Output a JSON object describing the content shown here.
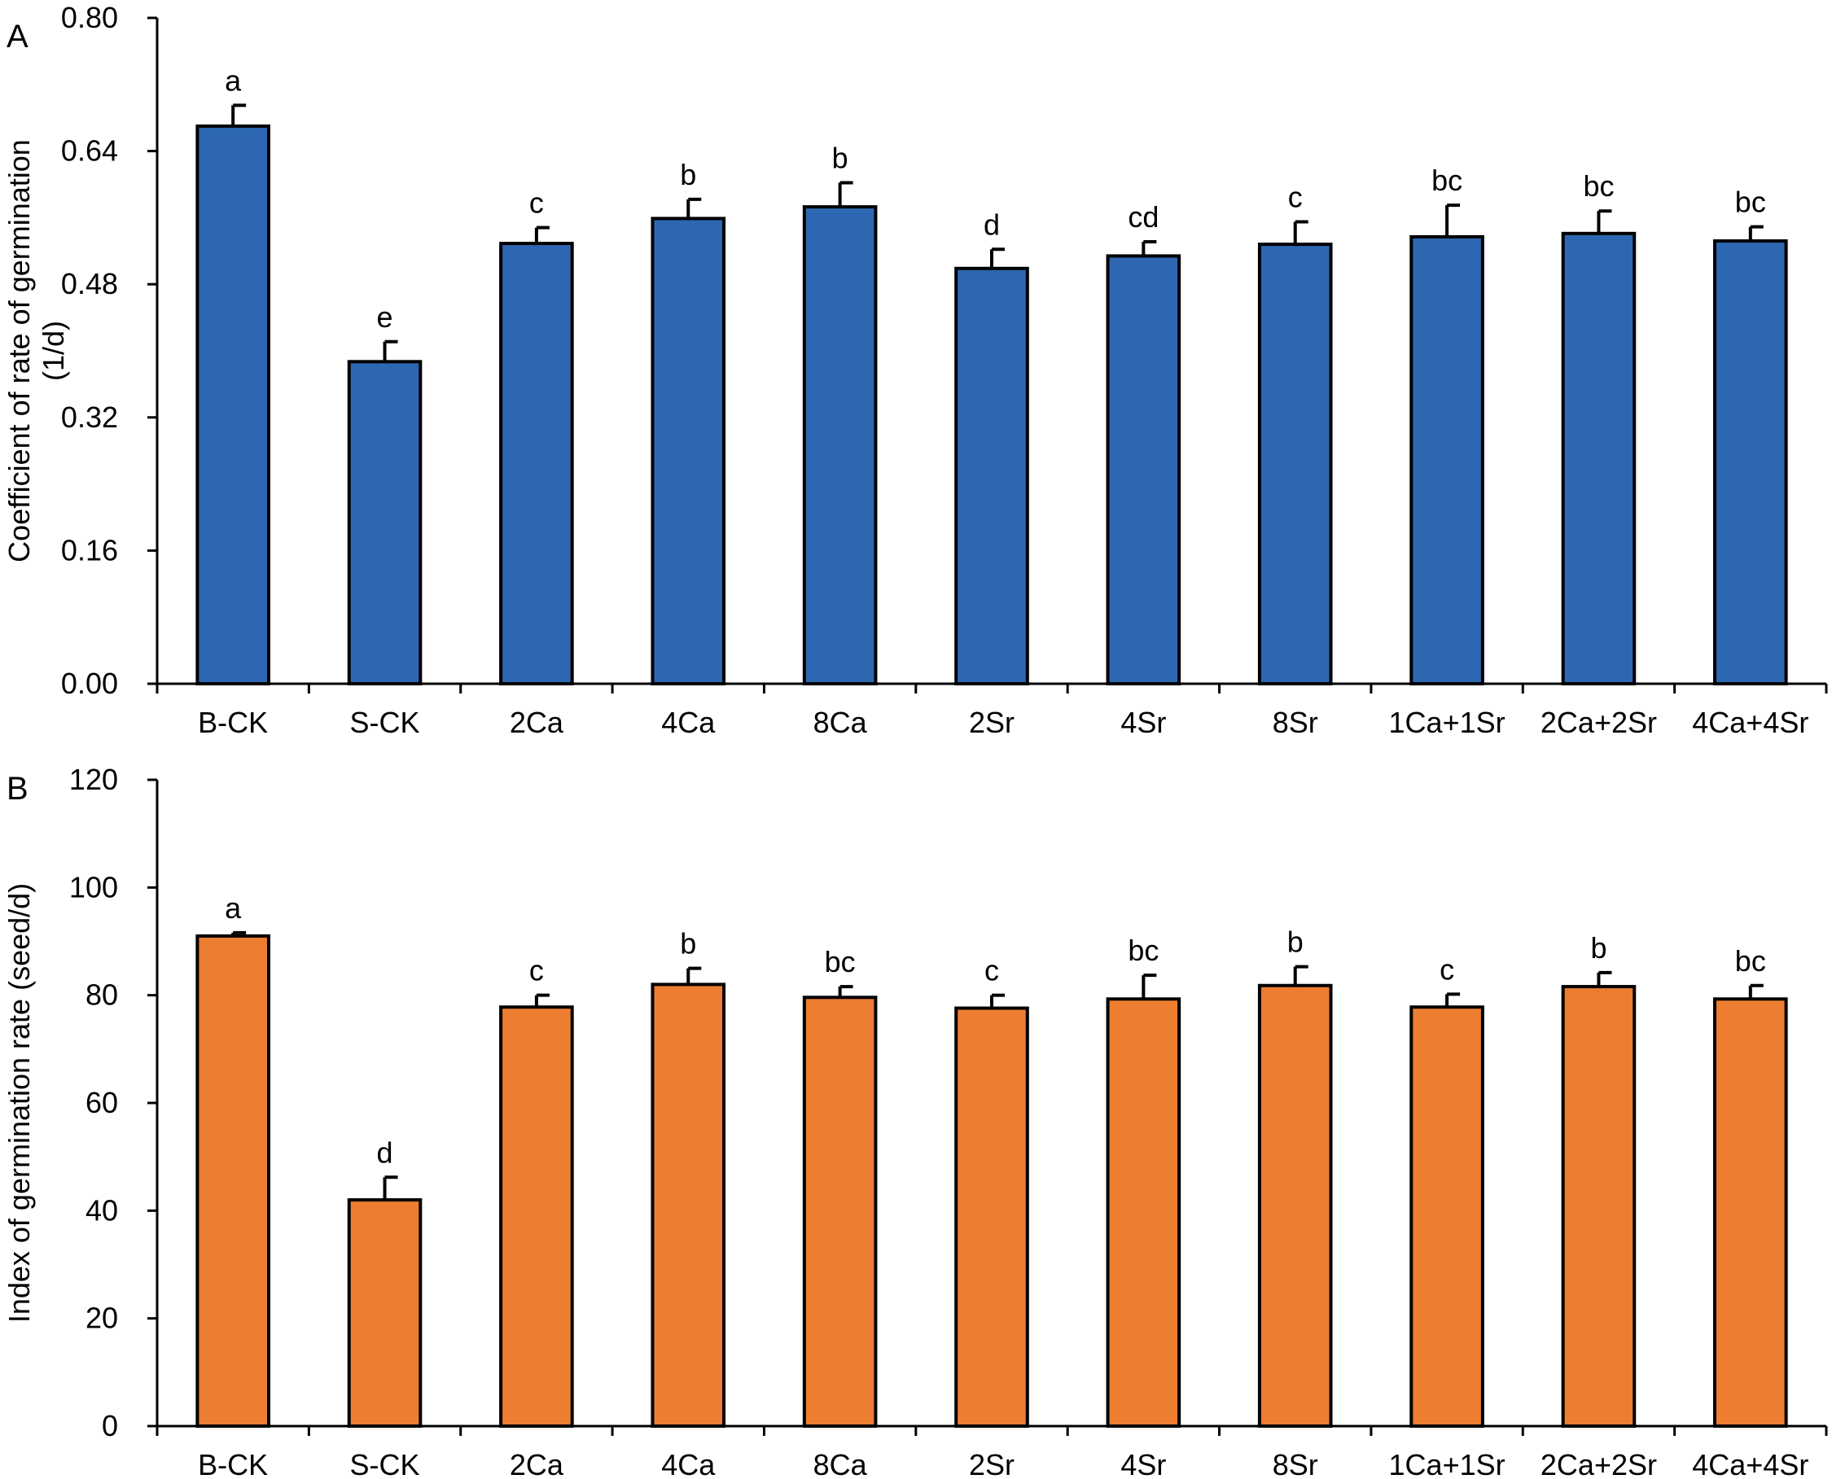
{
  "chart_data": [
    {
      "panel": "A",
      "type": "bar",
      "ylabel": "Coefficient of rate of germination (1/d)",
      "ylabel_lines": [
        "Coefficient of rate of germination",
        "(1/d)"
      ],
      "ylim": [
        0,
        0.8
      ],
      "yticks": [
        0,
        0.16,
        0.32,
        0.48,
        0.64,
        0.8
      ],
      "ytick_labels": [
        "0.00",
        "0.16",
        "0.32",
        "0.48",
        "0.64",
        "0.80"
      ],
      "bar_color": "#2E67B1",
      "categories": [
        "B-CK",
        "S-CK",
        "2Ca",
        "4Ca",
        "8Ca",
        "2Sr",
        "4Sr",
        "8Sr",
        "1Ca+1Sr",
        "2Ca+2Sr",
        "4Ca+4Sr"
      ],
      "values": [
        0.67,
        0.387,
        0.529,
        0.559,
        0.573,
        0.499,
        0.514,
        0.528,
        0.537,
        0.541,
        0.532
      ],
      "errors": [
        0.025,
        0.024,
        0.019,
        0.023,
        0.029,
        0.023,
        0.017,
        0.027,
        0.038,
        0.027,
        0.017
      ],
      "significance": [
        "a",
        "e",
        "c",
        "b",
        "b",
        "d",
        "cd",
        "c",
        "bc",
        "bc",
        "bc"
      ]
    },
    {
      "panel": "B",
      "type": "bar",
      "ylabel": "Index of germination rate (seed/d)",
      "ylabel_lines": [
        "Index of germination rate (seed/d)"
      ],
      "ylim": [
        0,
        120
      ],
      "yticks": [
        0,
        20,
        40,
        60,
        80,
        100,
        120
      ],
      "ytick_labels": [
        "0",
        "20",
        "40",
        "60",
        "80",
        "100",
        "120"
      ],
      "bar_color": "#ED7D31",
      "categories": [
        "B-CK",
        "S-CK",
        "2Ca",
        "4Ca",
        "8Ca",
        "2Sr",
        "4Sr",
        "8Sr",
        "1Ca+1Sr",
        "2Ca+2Sr",
        "4Ca+4Sr"
      ],
      "values": [
        91.0,
        42.0,
        77.8,
        82.0,
        79.6,
        77.6,
        79.3,
        81.8,
        77.8,
        81.6,
        79.3
      ],
      "errors": [
        0.6,
        4.2,
        2.2,
        3.0,
        2.0,
        2.4,
        4.4,
        3.5,
        2.4,
        2.6,
        2.5
      ],
      "significance": [
        "a",
        "d",
        "c",
        "b",
        "bc",
        "c",
        "bc",
        "b",
        "c",
        "b",
        "bc"
      ]
    }
  ]
}
